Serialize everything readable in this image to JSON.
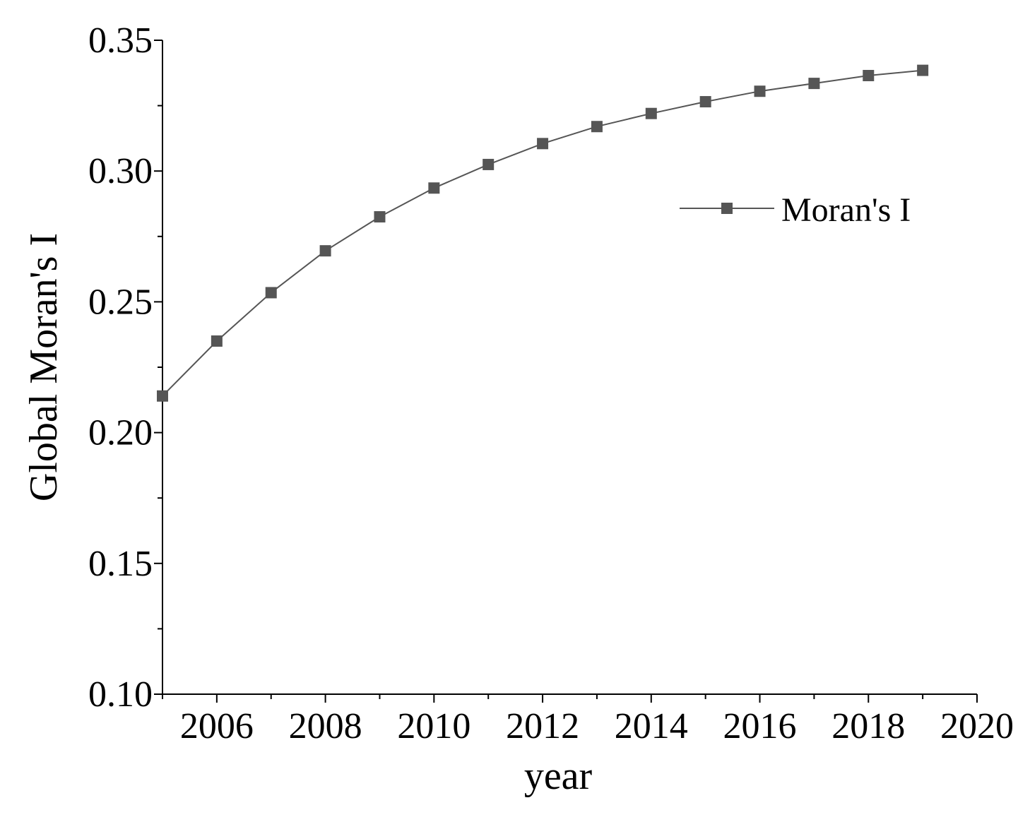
{
  "chart_data": {
    "type": "line",
    "title": "",
    "xlabel": "year",
    "ylabel": "Global Moran's I",
    "xlim": [
      2005,
      2020
    ],
    "ylim": [
      0.1,
      0.35
    ],
    "x_ticks": [
      2006,
      2008,
      2010,
      2012,
      2014,
      2016,
      2018,
      2020
    ],
    "x_tick_labels": [
      "2006",
      "2008",
      "2010",
      "2012",
      "2014",
      "2016",
      "2018",
      "2020"
    ],
    "y_ticks": [
      0.1,
      0.15,
      0.2,
      0.25,
      0.3,
      0.35
    ],
    "y_tick_labels": [
      "0.10",
      "0.15",
      "0.20",
      "0.25",
      "0.30",
      "0.35"
    ],
    "grid": false,
    "legend_position": "top-right",
    "series": [
      {
        "name": "Moran's I",
        "color": "#555555",
        "marker": "square",
        "x": [
          2005,
          2006,
          2007,
          2008,
          2009,
          2010,
          2011,
          2012,
          2013,
          2014,
          2015,
          2016,
          2017,
          2018,
          2019
        ],
        "y": [
          0.214,
          0.235,
          0.2535,
          0.2695,
          0.2825,
          0.2935,
          0.3025,
          0.3105,
          0.317,
          0.322,
          0.3265,
          0.3305,
          0.3335,
          0.3365,
          0.3385
        ]
      }
    ]
  }
}
